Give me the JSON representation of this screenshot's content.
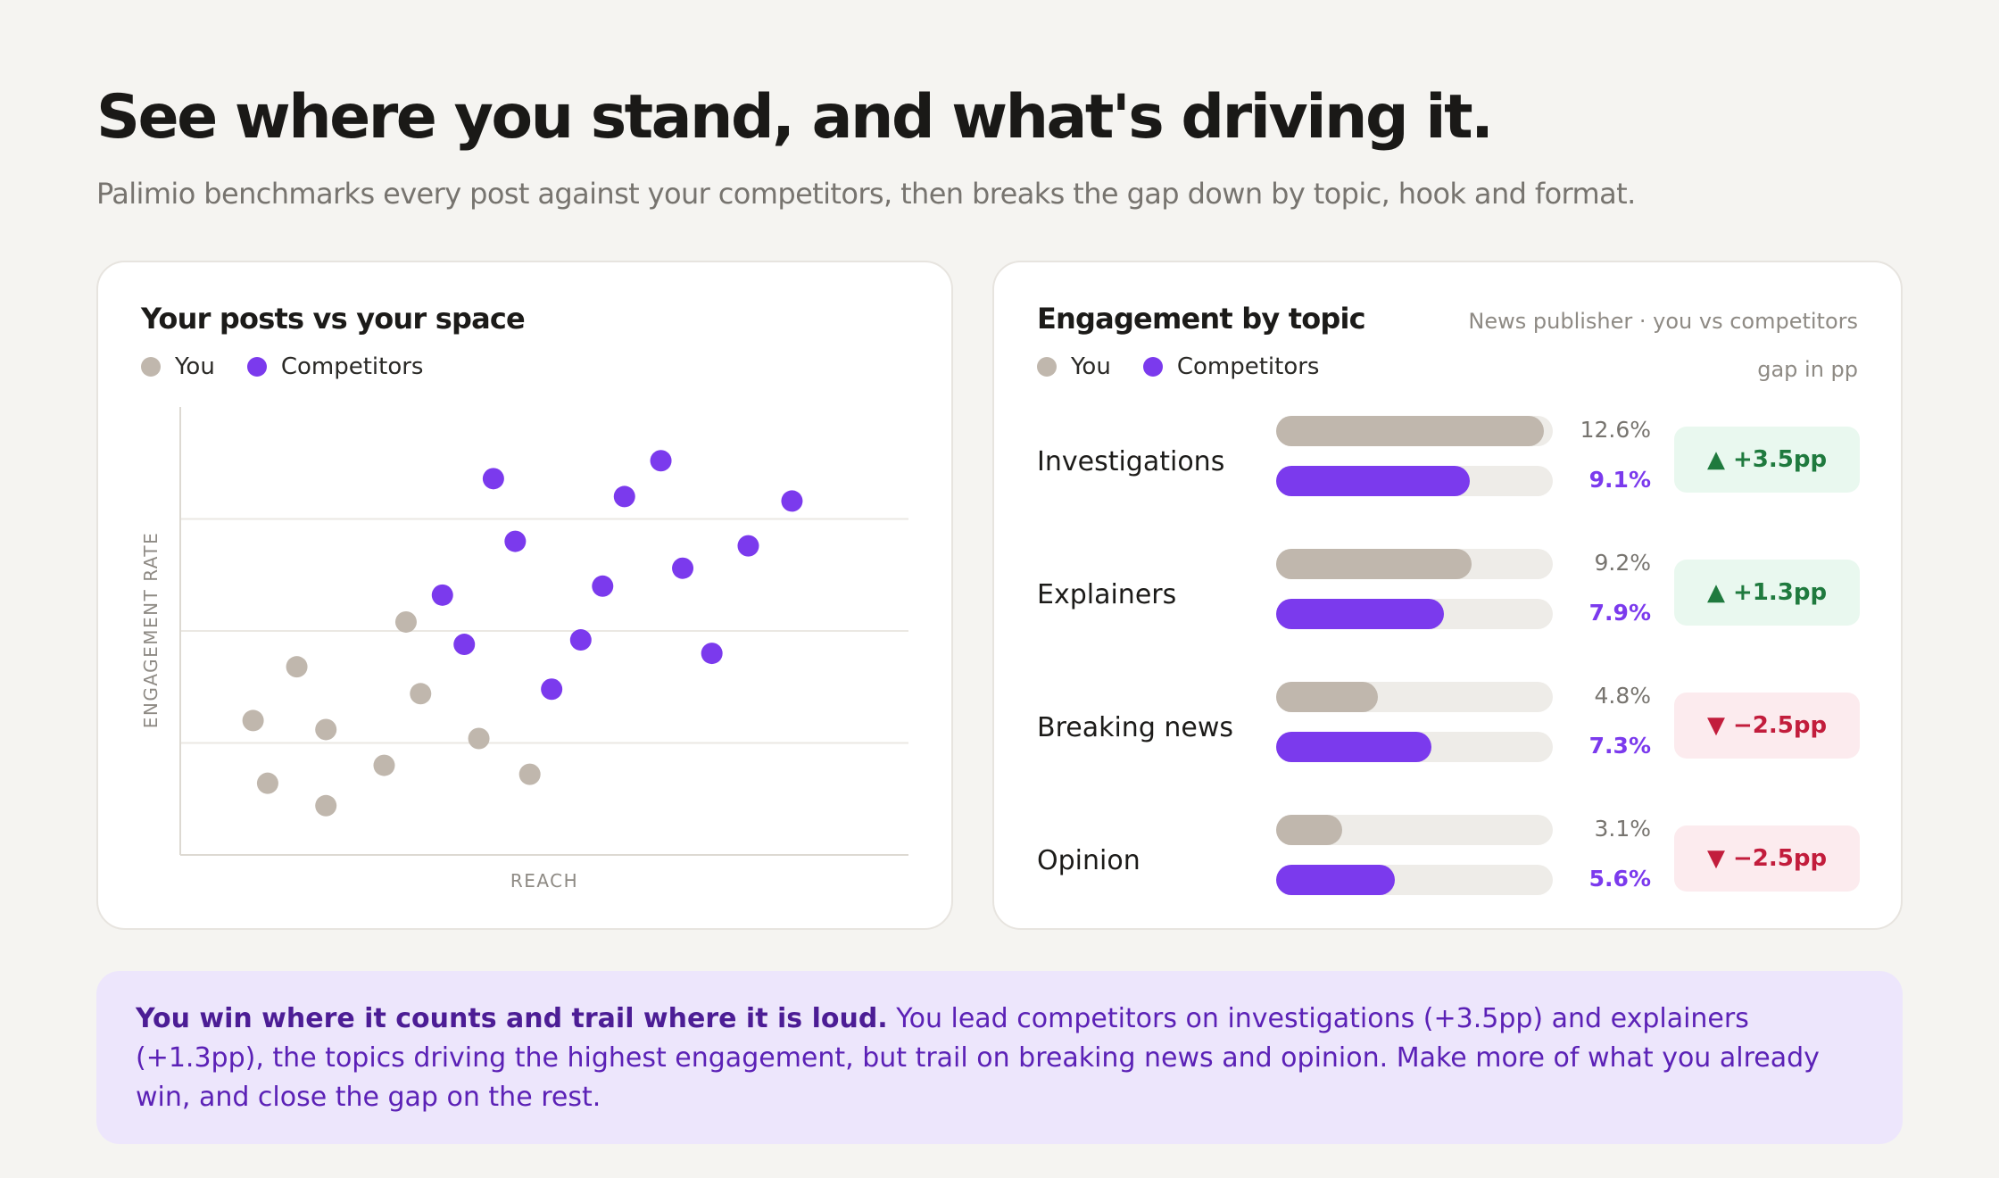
{
  "header": {
    "title": "See where you stand, and what's driving it.",
    "subtitle": "Palimio benchmarks every post against your competitors, then breaks the gap down by topic, hook and format."
  },
  "colors": {
    "you": "#c0b7ad",
    "competitors": "#7b3aed",
    "up": "#1f7a3e",
    "down": "#c21d3c"
  },
  "scatter_card": {
    "title": "Your posts vs your space",
    "legend": {
      "you": "You",
      "competitors": "Competitors"
    }
  },
  "topic_card": {
    "title": "Engagement by topic",
    "meta": "News publisher · you vs competitors",
    "gap_note": "gap in pp",
    "legend": {
      "you": "You",
      "competitors": "Competitors"
    },
    "rows": [
      {
        "topic": "Investigations",
        "you": "12.6%",
        "competitors": "9.1%",
        "gap": "▲ +3.5pp",
        "direction": "up"
      },
      {
        "topic": "Explainers",
        "you": "9.2%",
        "competitors": "7.9%",
        "gap": "▲ +1.3pp",
        "direction": "up"
      },
      {
        "topic": "Breaking news",
        "you": "4.8%",
        "competitors": "7.3%",
        "gap": "▼ −2.5pp",
        "direction": "down"
      },
      {
        "topic": "Opinion",
        "you": "3.1%",
        "competitors": "5.6%",
        "gap": "▼ −2.5pp",
        "direction": "down"
      }
    ]
  },
  "callout": {
    "lead": "You win where it counts and trail where it is loud.",
    "body": "You lead competitors on investigations (+3.5pp) and explainers (+1.3pp), the topics driving the highest engagement, but trail on breaking news and opinion. Make more of what you already win, and close the gap on the rest."
  },
  "chart_data": [
    {
      "type": "scatter",
      "title": "Your posts vs your space",
      "xlabel": "REACH",
      "ylabel": "ENGAGEMENT RATE",
      "xlim": [
        0,
        100
      ],
      "ylim": [
        0,
        100
      ],
      "grid": true,
      "legend": "top-left",
      "series": [
        {
          "name": "You",
          "color": "#c0b7ad",
          "points": [
            [
              10,
              30
            ],
            [
              12,
              16
            ],
            [
              16,
              42
            ],
            [
              20,
              11
            ],
            [
              20,
              28
            ],
            [
              28,
              20
            ],
            [
              31,
              52
            ],
            [
              33,
              36
            ],
            [
              41,
              26
            ],
            [
              48,
              18
            ]
          ]
        },
        {
          "name": "Competitors",
          "color": "#7b3aed",
          "points": [
            [
              36,
              58
            ],
            [
              39,
              47
            ],
            [
              43,
              84
            ],
            [
              46,
              70
            ],
            [
              51,
              37
            ],
            [
              55,
              48
            ],
            [
              58,
              60
            ],
            [
              61,
              80
            ],
            [
              66,
              88
            ],
            [
              69,
              64
            ],
            [
              73,
              45
            ],
            [
              78,
              69
            ],
            [
              84,
              79
            ]
          ]
        }
      ]
    },
    {
      "type": "bar",
      "title": "Engagement by topic",
      "categories": [
        "Investigations",
        "Explainers",
        "Breaking news",
        "Opinion"
      ],
      "xlim": [
        0,
        12.6
      ],
      "series": [
        {
          "name": "You",
          "values": [
            12.6,
            9.2,
            4.8,
            3.1
          ]
        },
        {
          "name": "Competitors",
          "values": [
            9.1,
            7.9,
            7.3,
            5.6
          ]
        }
      ]
    }
  ]
}
